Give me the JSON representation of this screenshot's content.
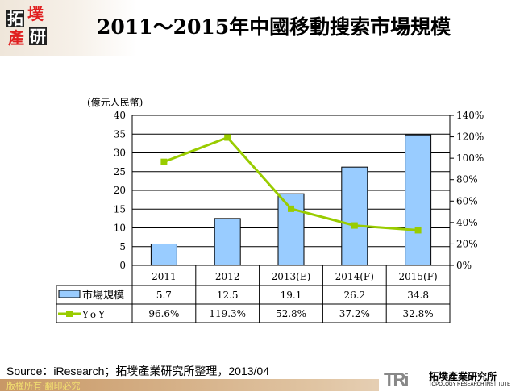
{
  "logo": {
    "text": [
      "拓",
      "墣",
      "產",
      "研"
    ]
  },
  "title": "2011～2015年中國移動搜索市場規模",
  "source": "Source：iResearch；拓墣產業研究所整理，2013/04",
  "footer": {
    "copyright": "版權所有‧翻印必究",
    "org_abbr": "TRi",
    "org_name": "拓墣產業研究所",
    "org_en": "TOPOLOGY RESEARCH INSTITUTE"
  },
  "chart_data": {
    "type": "bar+line",
    "ylabel": "(億元人民幣)",
    "categories": [
      "2011",
      "2012",
      "2013(E)",
      "2014(F)",
      "2015(F)"
    ],
    "ylim": [
      0,
      40
    ],
    "yticks": [
      "0",
      "5",
      "10",
      "15",
      "20",
      "25",
      "30",
      "35",
      "40"
    ],
    "y2lim": [
      0,
      140
    ],
    "y2ticks": [
      "0%",
      "20%",
      "40%",
      "60%",
      "80%",
      "100%",
      "120%",
      "140%"
    ],
    "grid": true,
    "series": [
      {
        "name": "市場規模",
        "type": "bar",
        "axis": "left",
        "color": "#99ccff",
        "values": [
          5.7,
          12.5,
          19.1,
          26.2,
          34.8
        ],
        "labels": [
          "5.7",
          "12.5",
          "19.1",
          "26.2",
          "34.8"
        ]
      },
      {
        "name": "YoY",
        "type": "line",
        "axis": "right",
        "color": "#99cc00",
        "values": [
          96.6,
          119.3,
          52.8,
          37.2,
          32.8
        ],
        "labels": [
          "96.6%",
          "119.3%",
          "52.8%",
          "37.2%",
          "32.8%"
        ]
      }
    ],
    "legend": "data-table"
  }
}
